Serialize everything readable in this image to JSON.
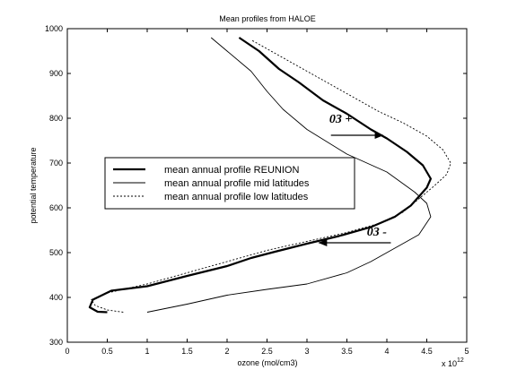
{
  "chart_data": {
    "type": "line",
    "title": "Mean profiles from HALOE",
    "xlabel": "ozone (mol/cm3)",
    "ylabel": "potential temperature",
    "x_multiplier_label": "x 10",
    "x_multiplier_exponent": "12",
    "xlim": [
      0,
      5
    ],
    "ylim": [
      300,
      1000
    ],
    "x_ticks": [
      0,
      0.5,
      1,
      1.5,
      2,
      2.5,
      3,
      3.5,
      4,
      4.5,
      5
    ],
    "x_tick_labels": [
      "0",
      "0.5",
      "1",
      "1.5",
      "2",
      "2.5",
      "3",
      "3.5",
      "4",
      "4.5",
      "5"
    ],
    "y_ticks": [
      300,
      400,
      500,
      600,
      700,
      800,
      900,
      1000
    ],
    "y_tick_labels": [
      "300",
      "400",
      "500",
      "600",
      "700",
      "800",
      "900",
      "1000"
    ],
    "grid": false,
    "legend_position": "center-left",
    "series": [
      {
        "name": "mean annual profile REUNION",
        "style": "thick-solid",
        "x": [
          0.5,
          0.38,
          0.28,
          0.32,
          0.55,
          1.0,
          1.5,
          2.0,
          2.3,
          2.6,
          3.0,
          3.4,
          3.8,
          4.1,
          4.3,
          4.4,
          4.5,
          4.55,
          4.45,
          4.25,
          4.0,
          3.8,
          3.5,
          3.2,
          2.9,
          2.65,
          2.4,
          2.15
        ],
        "y": [
          367,
          368,
          378,
          395,
          415,
          425,
          448,
          470,
          488,
          502,
          520,
          537,
          557,
          580,
          605,
          625,
          645,
          665,
          695,
          725,
          755,
          775,
          810,
          840,
          880,
          910,
          950,
          980
        ]
      },
      {
        "name": "mean annual profile mid latitudes",
        "style": "thin-solid",
        "x": [
          1.0,
          1.5,
          2.0,
          2.5,
          3.0,
          3.5,
          3.8,
          4.1,
          4.4,
          4.55,
          4.5,
          4.35,
          4.0,
          3.5,
          3.0,
          2.7,
          2.5,
          2.3,
          2.0,
          1.8
        ],
        "y": [
          367,
          385,
          405,
          418,
          430,
          455,
          480,
          510,
          540,
          580,
          610,
          635,
          680,
          720,
          775,
          820,
          860,
          905,
          950,
          980
        ]
      },
      {
        "name": "mean annual profile low latitudes",
        "style": "dashed",
        "x": [
          0.7,
          0.5,
          0.35,
          0.3,
          0.5,
          1.0,
          1.5,
          2.0,
          2.5,
          3.0,
          3.5,
          3.9,
          4.2,
          4.4,
          4.6,
          4.75,
          4.8,
          4.7,
          4.5,
          4.2,
          3.9,
          3.6,
          3.3,
          3.0,
          2.7,
          2.3
        ],
        "y": [
          367,
          372,
          382,
          395,
          410,
          430,
          455,
          480,
          505,
          525,
          545,
          565,
          590,
          620,
          650,
          675,
          700,
          730,
          760,
          790,
          815,
          845,
          875,
          905,
          935,
          975
        ]
      }
    ],
    "annotations": [
      {
        "text": "03 +",
        "x": 3.28,
        "y": 790
      },
      {
        "text": "03 -",
        "x": 3.75,
        "y": 538
      }
    ],
    "arrows": [
      {
        "from": [
          3.3,
          762
        ],
        "to": [
          3.95,
          762
        ]
      },
      {
        "from": [
          4.05,
          522
        ],
        "to": [
          3.15,
          522
        ]
      }
    ]
  }
}
